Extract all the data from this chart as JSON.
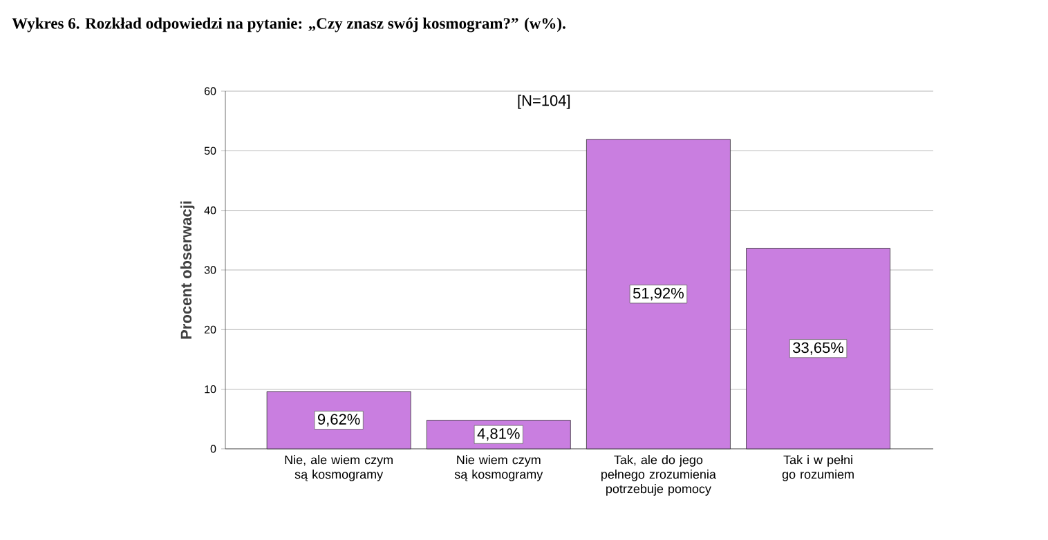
{
  "chart_data": {
    "type": "bar",
    "title": "Wykres 6. Rozkład odpowiedzi na pytanie: „Czy znasz swój kosmogram?” (w%).",
    "ylabel": "Procent obserwacji",
    "categories": [
      "Nie, ale wiem czym są kosmogramy",
      "Nie wiem czym są kosmogramy",
      "Tak, ale do jego pełnego zrozumienia potrzebuje pomocy",
      "Tak i w pełni go rozumiem"
    ],
    "values": [
      9.62,
      4.81,
      51.92,
      33.65
    ],
    "value_labels": [
      "9,62%",
      "4,81%",
      "51,92%",
      "33,65%"
    ],
    "color": "#c97ee0",
    "ylim": [
      0,
      60
    ],
    "yticks": [
      0,
      10,
      20,
      30,
      40,
      50,
      60
    ],
    "grid": "y",
    "annotations": [
      "[N=104]"
    ]
  }
}
